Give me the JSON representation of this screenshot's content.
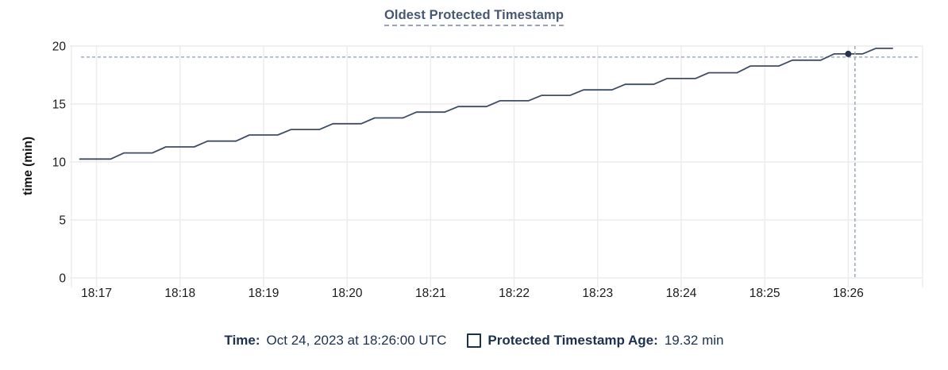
{
  "title": "Oldest Protected Timestamp",
  "footer": {
    "time_label": "Time:",
    "time_value": "Oct 24, 2023 at 18:26:00 UTC",
    "series_label": "Protected Timestamp Age:",
    "series_value": "19.32 min"
  },
  "colors": {
    "line": "#3d4d66",
    "dot": "#26344f",
    "crosshair": "#9dadbf",
    "grid": "#ececec",
    "tick_text": "#1b1b1b",
    "title_text": "#475872",
    "footer_text": "#1c3150"
  },
  "chart_data": {
    "type": "line",
    "title": "Oldest Protected Timestamp",
    "xlabel": "",
    "ylabel": "time (min)",
    "ylim": [
      0,
      20
    ],
    "y_ticks": [
      0,
      5,
      10,
      15,
      20
    ],
    "x_ticks": [
      {
        "t": 17,
        "label": "18:17"
      },
      {
        "t": 18,
        "label": "18:18"
      },
      {
        "t": 19,
        "label": "18:19"
      },
      {
        "t": 20,
        "label": "18:20"
      },
      {
        "t": 21,
        "label": "18:21"
      },
      {
        "t": 22,
        "label": "18:22"
      },
      {
        "t": 23,
        "label": "18:23"
      },
      {
        "t": 24,
        "label": "18:24"
      },
      {
        "t": 25,
        "label": "18:25"
      },
      {
        "t": 26,
        "label": "18:26"
      }
    ],
    "xlim_minutes_after_1800": [
      16.7,
      26.89
    ],
    "grid": true,
    "legend_position": "bottom",
    "series": [
      {
        "name": "Protected Timestamp Age",
        "unit": "min",
        "points": [
          [
            16.8,
            10.25
          ],
          [
            17.17,
            10.25
          ],
          [
            17.33,
            10.78
          ],
          [
            17.67,
            10.78
          ],
          [
            17.83,
            11.3
          ],
          [
            18.17,
            11.3
          ],
          [
            18.33,
            11.8
          ],
          [
            18.67,
            11.8
          ],
          [
            18.83,
            12.33
          ],
          [
            19.17,
            12.33
          ],
          [
            19.33,
            12.8
          ],
          [
            19.67,
            12.8
          ],
          [
            19.83,
            13.3
          ],
          [
            20.17,
            13.3
          ],
          [
            20.33,
            13.8
          ],
          [
            20.67,
            13.8
          ],
          [
            20.83,
            14.3
          ],
          [
            21.17,
            14.3
          ],
          [
            21.33,
            14.78
          ],
          [
            21.67,
            14.78
          ],
          [
            21.83,
            15.28
          ],
          [
            22.17,
            15.28
          ],
          [
            22.33,
            15.75
          ],
          [
            22.67,
            15.75
          ],
          [
            22.83,
            16.22
          ],
          [
            23.17,
            16.22
          ],
          [
            23.33,
            16.7
          ],
          [
            23.67,
            16.7
          ],
          [
            23.83,
            17.2
          ],
          [
            24.17,
            17.2
          ],
          [
            24.33,
            17.7
          ],
          [
            24.67,
            17.7
          ],
          [
            24.83,
            18.28
          ],
          [
            25.17,
            18.28
          ],
          [
            25.33,
            18.78
          ],
          [
            25.67,
            18.78
          ],
          [
            25.83,
            19.32
          ],
          [
            26.17,
            19.32
          ],
          [
            26.33,
            19.8
          ],
          [
            26.53,
            19.8
          ]
        ]
      }
    ],
    "highlight": {
      "time_label": "18:26:00",
      "t": 26.0,
      "value": 19.32,
      "vline_t": 26.08,
      "hline_value": 19.05
    }
  }
}
